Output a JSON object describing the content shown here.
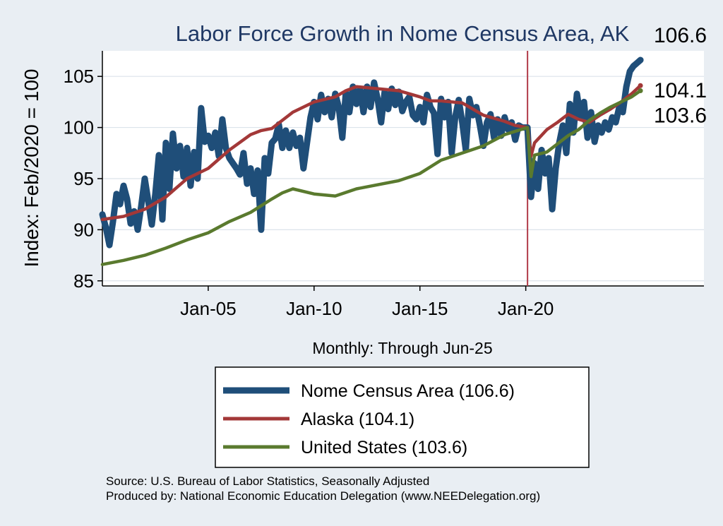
{
  "chart_data": {
    "type": "line",
    "title": "Labor Force Growth in Nome Census Area, AK",
    "ylabel": "Index: Feb/2020 = 100",
    "xlabel": "Monthly: Through Jun-25",
    "ylim": [
      84.5,
      107.5
    ],
    "xlim": [
      "2000-01",
      "2028-06"
    ],
    "y_ticks": [
      85,
      90,
      95,
      100,
      105
    ],
    "x_ticks": [
      {
        "date": "2005-01",
        "label": "Jan-05"
      },
      {
        "date": "2010-01",
        "label": "Jan-10"
      },
      {
        "date": "2015-01",
        "label": "Jan-15"
      },
      {
        "date": "2020-01",
        "label": "Jan-20"
      }
    ],
    "reference_line": {
      "date": "2020-02",
      "color": "#b03a48"
    },
    "grid": "horizontal",
    "legend_position": "bottom",
    "series": [
      {
        "name": "Nome Census Area  (106.6)",
        "color": "#1f4e79",
        "end_label": "106.6",
        "points": [
          [
            "2000-01",
            91.5
          ],
          [
            "2000-03",
            90.2
          ],
          [
            "2000-05",
            88.5
          ],
          [
            "2000-07",
            90.8
          ],
          [
            "2000-09",
            93.5
          ],
          [
            "2000-11",
            92.5
          ],
          [
            "2001-01",
            94.3
          ],
          [
            "2001-03",
            93.0
          ],
          [
            "2001-05",
            90.6
          ],
          [
            "2001-07",
            91.8
          ],
          [
            "2001-09",
            90.0
          ],
          [
            "2001-11",
            92.3
          ],
          [
            "2002-01",
            95.0
          ],
          [
            "2002-03",
            92.8
          ],
          [
            "2002-05",
            90.5
          ],
          [
            "2002-07",
            93.5
          ],
          [
            "2002-09",
            97.3
          ],
          [
            "2002-11",
            91.0
          ],
          [
            "2003-01",
            98.5
          ],
          [
            "2003-03",
            94.0
          ],
          [
            "2003-05",
            99.4
          ],
          [
            "2003-07",
            96.0
          ],
          [
            "2003-09",
            98.2
          ],
          [
            "2003-11",
            95.2
          ],
          [
            "2004-01",
            98.0
          ],
          [
            "2004-03",
            94.3
          ],
          [
            "2004-05",
            97.6
          ],
          [
            "2004-07",
            95.0
          ],
          [
            "2004-09",
            101.9
          ],
          [
            "2004-11",
            98.6
          ],
          [
            "2005-01",
            99.2
          ],
          [
            "2005-03",
            98.0
          ],
          [
            "2005-05",
            99.5
          ],
          [
            "2005-07",
            97.2
          ],
          [
            "2005-09",
            100.8
          ],
          [
            "2005-11",
            98.0
          ],
          [
            "2006-01",
            97.0
          ],
          [
            "2006-03",
            96.5
          ],
          [
            "2006-05",
            96.0
          ],
          [
            "2006-07",
            95.4
          ],
          [
            "2006-09",
            97.5
          ],
          [
            "2006-11",
            94.5
          ],
          [
            "2007-01",
            96.0
          ],
          [
            "2007-03",
            93.5
          ],
          [
            "2007-05",
            95.8
          ],
          [
            "2007-07",
            90.0
          ],
          [
            "2007-09",
            97.0
          ],
          [
            "2007-11",
            95.5
          ],
          [
            "2008-01",
            98.5
          ],
          [
            "2008-03",
            98.9
          ],
          [
            "2008-05",
            100.3
          ],
          [
            "2008-07",
            98.0
          ],
          [
            "2008-09",
            99.7
          ],
          [
            "2008-11",
            98.0
          ],
          [
            "2009-01",
            99.5
          ],
          [
            "2009-03",
            98.2
          ],
          [
            "2009-05",
            99.0
          ],
          [
            "2009-07",
            96.0
          ],
          [
            "2009-09",
            98.5
          ],
          [
            "2009-11",
            101.0
          ],
          [
            "2010-01",
            102.5
          ],
          [
            "2010-03",
            100.8
          ],
          [
            "2010-05",
            103.2
          ],
          [
            "2010-07",
            101.5
          ],
          [
            "2010-09",
            102.8
          ],
          [
            "2010-11",
            101.0
          ],
          [
            "2011-01",
            103.3
          ],
          [
            "2011-03",
            102.0
          ],
          [
            "2011-05",
            99.0
          ],
          [
            "2011-07",
            103.4
          ],
          [
            "2011-09",
            101.5
          ],
          [
            "2011-11",
            104.0
          ],
          [
            "2012-01",
            102.3
          ],
          [
            "2012-03",
            103.8
          ],
          [
            "2012-05",
            101.5
          ],
          [
            "2012-07",
            104.0
          ],
          [
            "2012-09",
            102.0
          ],
          [
            "2012-11",
            104.4
          ],
          [
            "2013-01",
            102.8
          ],
          [
            "2013-03",
            100.5
          ],
          [
            "2013-05",
            103.5
          ],
          [
            "2013-07",
            101.8
          ],
          [
            "2013-09",
            103.8
          ],
          [
            "2013-11",
            102.2
          ],
          [
            "2014-01",
            103.5
          ],
          [
            "2014-03",
            101.6
          ],
          [
            "2014-05",
            102.5
          ],
          [
            "2014-07",
            103.0
          ],
          [
            "2014-09",
            101.2
          ],
          [
            "2014-11",
            100.8
          ],
          [
            "2015-01",
            102.0
          ],
          [
            "2015-03",
            100.5
          ],
          [
            "2015-05",
            103.2
          ],
          [
            "2015-07",
            102.0
          ],
          [
            "2015-09",
            101.4
          ],
          [
            "2015-11",
            97.4
          ],
          [
            "2016-01",
            102.8
          ],
          [
            "2016-03",
            101.0
          ],
          [
            "2016-05",
            102.5
          ],
          [
            "2016-07",
            97.5
          ],
          [
            "2016-09",
            101.0
          ],
          [
            "2016-11",
            102.7
          ],
          [
            "2017-01",
            100.5
          ],
          [
            "2017-03",
            97.8
          ],
          [
            "2017-05",
            102.8
          ],
          [
            "2017-07",
            101.2
          ],
          [
            "2017-09",
            102.0
          ],
          [
            "2017-11",
            100.2
          ],
          [
            "2018-01",
            98.2
          ],
          [
            "2018-03",
            100.5
          ],
          [
            "2018-05",
            101.3
          ],
          [
            "2018-07",
            99.0
          ],
          [
            "2018-09",
            100.8
          ],
          [
            "2018-11",
            99.2
          ],
          [
            "2019-01",
            101.0
          ],
          [
            "2019-03",
            99.8
          ],
          [
            "2019-05",
            100.5
          ],
          [
            "2019-07",
            98.8
          ],
          [
            "2019-09",
            100.2
          ],
          [
            "2019-11",
            100.0
          ],
          [
            "2020-02",
            100.0
          ],
          [
            "2020-04",
            93.2
          ],
          [
            "2020-06",
            96.5
          ],
          [
            "2020-08",
            94.0
          ],
          [
            "2020-10",
            97.8
          ],
          [
            "2020-12",
            95.5
          ],
          [
            "2021-02",
            97.0
          ],
          [
            "2021-04",
            92.0
          ],
          [
            "2021-06",
            96.0
          ],
          [
            "2021-08",
            98.5
          ],
          [
            "2021-10",
            100.2
          ],
          [
            "2021-12",
            97.5
          ],
          [
            "2022-02",
            102.3
          ],
          [
            "2022-04",
            99.5
          ],
          [
            "2022-06",
            103.3
          ],
          [
            "2022-08",
            101.0
          ],
          [
            "2022-10",
            102.5
          ],
          [
            "2022-12",
            99.0
          ],
          [
            "2023-02",
            101.5
          ],
          [
            "2023-04",
            98.6
          ],
          [
            "2023-06",
            100.2
          ],
          [
            "2023-08",
            99.5
          ],
          [
            "2023-10",
            100.5
          ],
          [
            "2023-12",
            99.8
          ],
          [
            "2024-02",
            101.0
          ],
          [
            "2024-04",
            100.5
          ],
          [
            "2024-06",
            102.0
          ],
          [
            "2024-08",
            101.5
          ],
          [
            "2024-10",
            104.0
          ],
          [
            "2024-12",
            105.5
          ],
          [
            "2025-02",
            106.0
          ],
          [
            "2025-04",
            106.3
          ],
          [
            "2025-06",
            106.6
          ]
        ]
      },
      {
        "name": "Alaska (104.1)",
        "color": "#a33838",
        "end_label": "104.1",
        "points": [
          [
            "2000-01",
            91.0
          ],
          [
            "2001-01",
            91.3
          ],
          [
            "2002-01",
            92.0
          ],
          [
            "2003-01",
            93.2
          ],
          [
            "2004-01",
            95.0
          ],
          [
            "2005-01",
            96.0
          ],
          [
            "2006-01",
            97.8
          ],
          [
            "2007-01",
            99.3
          ],
          [
            "2007-07",
            99.7
          ],
          [
            "2008-01",
            99.9
          ],
          [
            "2009-01",
            101.5
          ],
          [
            "2010-01",
            102.5
          ],
          [
            "2011-01",
            103.0
          ],
          [
            "2011-07",
            103.6
          ],
          [
            "2012-01",
            104.0
          ],
          [
            "2013-01",
            103.8
          ],
          [
            "2014-01",
            103.6
          ],
          [
            "2015-01",
            103.0
          ],
          [
            "2015-07",
            102.6
          ],
          [
            "2016-01",
            102.6
          ],
          [
            "2017-01",
            102.4
          ],
          [
            "2017-07",
            101.8
          ],
          [
            "2018-01",
            101.2
          ],
          [
            "2019-01",
            100.6
          ],
          [
            "2019-07",
            100.2
          ],
          [
            "2020-02",
            100.0
          ],
          [
            "2020-04",
            97.2
          ],
          [
            "2020-06",
            98.5
          ],
          [
            "2021-01",
            99.8
          ],
          [
            "2021-07",
            100.5
          ],
          [
            "2022-01",
            101.3
          ],
          [
            "2022-07",
            100.8
          ],
          [
            "2023-01",
            100.5
          ],
          [
            "2023-07",
            101.2
          ],
          [
            "2024-01",
            101.8
          ],
          [
            "2024-07",
            102.5
          ],
          [
            "2025-01",
            103.3
          ],
          [
            "2025-06",
            104.1
          ]
        ]
      },
      {
        "name": "United States (103.6)",
        "color": "#5a7a2e",
        "end_label": "103.6",
        "points": [
          [
            "2000-01",
            86.6
          ],
          [
            "2001-01",
            87.0
          ],
          [
            "2002-01",
            87.5
          ],
          [
            "2003-01",
            88.2
          ],
          [
            "2004-01",
            89.0
          ],
          [
            "2005-01",
            89.7
          ],
          [
            "2006-01",
            90.8
          ],
          [
            "2007-01",
            91.7
          ],
          [
            "2008-01",
            93.0
          ],
          [
            "2008-07",
            93.6
          ],
          [
            "2009-01",
            94.0
          ],
          [
            "2010-01",
            93.5
          ],
          [
            "2011-01",
            93.3
          ],
          [
            "2012-01",
            94.0
          ],
          [
            "2013-01",
            94.4
          ],
          [
            "2014-01",
            94.8
          ],
          [
            "2015-01",
            95.5
          ],
          [
            "2016-01",
            96.8
          ],
          [
            "2017-01",
            97.5
          ],
          [
            "2018-01",
            98.2
          ],
          [
            "2019-01",
            99.3
          ],
          [
            "2020-02",
            100.0
          ],
          [
            "2020-04",
            95.2
          ],
          [
            "2020-06",
            97.3
          ],
          [
            "2021-01",
            97.6
          ],
          [
            "2022-01",
            99.2
          ],
          [
            "2022-07",
            99.8
          ],
          [
            "2023-01",
            100.7
          ],
          [
            "2023-07",
            101.4
          ],
          [
            "2024-01",
            102.0
          ],
          [
            "2024-07",
            102.5
          ],
          [
            "2025-01",
            103.0
          ],
          [
            "2025-06",
            103.6
          ]
        ]
      }
    ]
  },
  "source_lines": [
    "Source: U.S. Bureau of Labor Statistics, Seasonally Adjusted",
    "Produced by: National Economic Education Delegation (www.NEEDelegation.org)"
  ]
}
